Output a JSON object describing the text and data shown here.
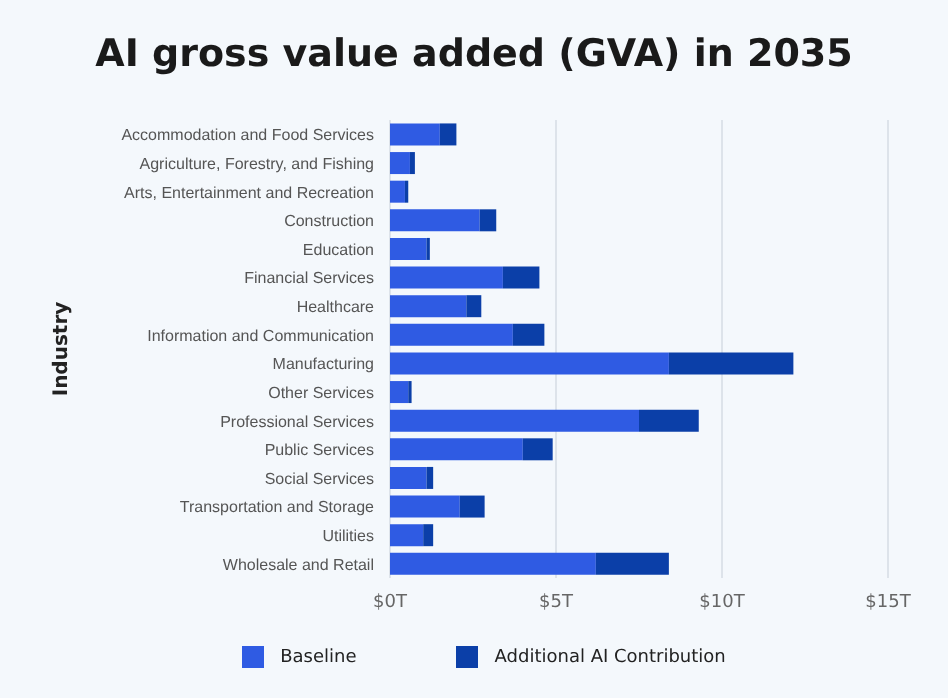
{
  "chart_data": {
    "type": "bar",
    "orientation": "horizontal",
    "stacked": true,
    "title": "AI gross value added (GVA) in 2035",
    "ylabel": "Industry",
    "categories": [
      "Accommodation and Food Services",
      "Agriculture, Forestry, and Fishing",
      "Arts, Entertainment and Recreation",
      "Construction",
      "Education",
      "Financial Services",
      "Healthcare",
      "Information and Communication",
      "Manufacturing",
      "Other Services",
      "Professional Services",
      "Public Services",
      "Social Services",
      "Transportation and Storage",
      "Utilities",
      "Wholesale and Retail"
    ],
    "series": [
      {
        "name": "Baseline",
        "color": "#2f5be3",
        "values": [
          1.5,
          0.6,
          0.45,
          2.7,
          1.1,
          3.4,
          2.3,
          3.7,
          8.4,
          0.55,
          7.5,
          4.0,
          1.1,
          2.1,
          1.0,
          6.2
        ]
      },
      {
        "name": "Additional AI Contribution",
        "color": "#0b3fa8",
        "values": [
          0.5,
          0.15,
          0.1,
          0.5,
          0.1,
          1.1,
          0.45,
          0.95,
          3.75,
          0.1,
          1.8,
          0.9,
          0.2,
          0.75,
          0.3,
          2.2
        ]
      }
    ],
    "xlim": [
      0,
      15
    ],
    "xticks": [
      {
        "value": 0,
        "label": "$0T"
      },
      {
        "value": 5,
        "label": "$5T"
      },
      {
        "value": 10,
        "label": "$10T"
      },
      {
        "value": 15,
        "label": "$15T"
      }
    ],
    "grid": "x",
    "legend": "bottom"
  }
}
